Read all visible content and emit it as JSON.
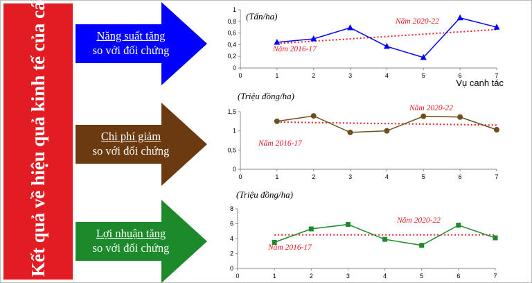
{
  "title": "Kết quả về hiệu quả kinh tế của các mô hình",
  "panels": [
    {
      "line1": "Năng suất tăng",
      "line2": "so với đối chứng",
      "arrow_color": "#0000ff"
    },
    {
      "line1": "Chi phí giảm",
      "line2": "so với đối chứng",
      "arrow_color": "#6b3a10"
    },
    {
      "line1": "Lợi nhuận tăng",
      "line2": "so với đối chứng",
      "arrow_color": "#1c8a2a"
    }
  ],
  "colors": {
    "title_bg": "#e31b23",
    "trend": "#e31b23",
    "annotation": "#e31b23"
  },
  "chart_data": [
    {
      "type": "line",
      "unit_label": "(Tấn/ha)",
      "xlabel": "Vụ canh tác",
      "x": [
        1,
        2,
        3,
        4,
        5,
        6,
        7
      ],
      "xlim": [
        0,
        7
      ],
      "ylim": [
        0,
        1
      ],
      "yticks": [
        0,
        0.2,
        0.4,
        0.6,
        0.8,
        1
      ],
      "ytick_labels": [
        "0",
        "0,2",
        "0,4",
        "0,6",
        "0,8",
        "1"
      ],
      "xticks": [
        0,
        1,
        2,
        3,
        4,
        5,
        6,
        7
      ],
      "series": [
        {
          "values": [
            0.44,
            0.5,
            0.69,
            0.37,
            0.18,
            0.86,
            0.7
          ],
          "color": "#0000ff",
          "marker": "triangle"
        }
      ],
      "trend": [
        0.42,
        0.66
      ],
      "annotations": [
        "Năm 2016-17",
        "Năm 2020-22"
      ]
    },
    {
      "type": "line",
      "unit_label": "(Triệu đồng/ha)",
      "xlabel": "",
      "x": [
        1,
        2,
        3,
        4,
        5,
        6,
        7
      ],
      "xlim": [
        0,
        7
      ],
      "ylim": [
        0,
        1.5
      ],
      "yticks": [
        0,
        0.5,
        1,
        1.5
      ],
      "ytick_labels": [
        "0",
        "0,5",
        "1",
        "1,5"
      ],
      "xticks": [
        0,
        1,
        2,
        3,
        4,
        5,
        6,
        7
      ],
      "series": [
        {
          "values": [
            1.25,
            1.39,
            0.96,
            1.0,
            1.38,
            1.36,
            1.03
          ],
          "color": "#6b4f1d",
          "marker": "circle"
        }
      ],
      "trend": [
        1.23,
        1.15
      ],
      "annotations": [
        "Năm 2016-17",
        "Năm 2020-22"
      ]
    },
    {
      "type": "line",
      "unit_label": "(Triệu đồng/ha)",
      "xlabel": "",
      "x": [
        1,
        2,
        3,
        4,
        5,
        6,
        7
      ],
      "xlim": [
        0,
        7
      ],
      "ylim": [
        0,
        8
      ],
      "yticks": [
        0,
        2,
        4,
        6,
        8
      ],
      "ytick_labels": [
        "0",
        "2",
        "4",
        "6",
        "8"
      ],
      "xticks": [
        0,
        1,
        2,
        3,
        4,
        5,
        6,
        7
      ],
      "series": [
        {
          "values": [
            3.5,
            5.3,
            5.9,
            3.9,
            3.1,
            5.8,
            4.1
          ],
          "color": "#1c8a2a",
          "marker": "square"
        }
      ],
      "trend": [
        4.5,
        4.5
      ],
      "annotations": [
        "Năm 2016-17",
        "Năm 2020-22"
      ]
    }
  ]
}
